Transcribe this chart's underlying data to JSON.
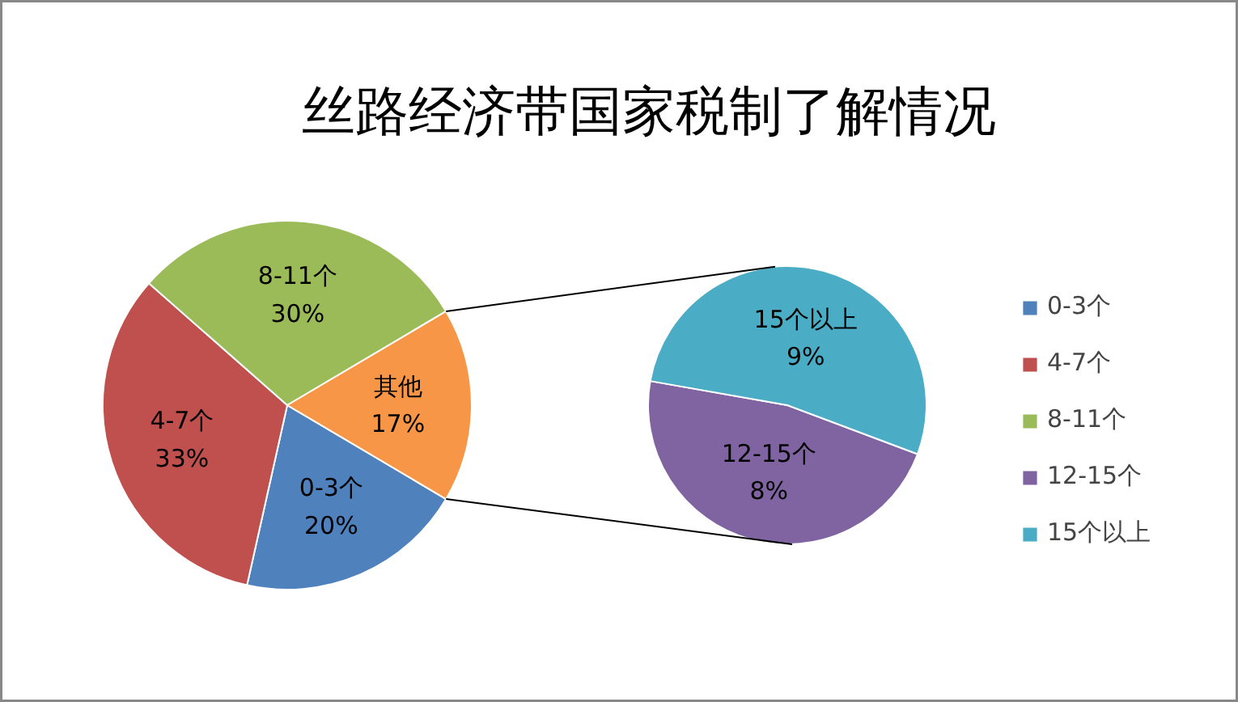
{
  "chart_data": [
    {
      "type": "pie",
      "title": "丝路经济带国家税制了解情况",
      "categories": [
        "0-3个",
        "4-7个",
        "8-11个",
        null
      ],
      "values": [
        20,
        33,
        30,
        17
      ],
      "colors": [
        "#4f81bd",
        "#c0504d",
        "#9bbb59",
        "#f79646"
      ],
      "value_labels": [
        "0-3个\n20%",
        "4-7个\n33%",
        "8-11个\n30%",
        "其他\n17%"
      ],
      "legend": "right"
    },
    {
      "type": "pie",
      "categories": [
        "12-15个",
        "15个以上"
      ],
      "values": [
        8,
        9
      ],
      "colors": [
        "#8064a2",
        "#4bacc6"
      ],
      "value_labels": [
        "12-15个\n8%",
        "15个以上\n9%"
      ],
      "legend": "right"
    }
  ]
}
